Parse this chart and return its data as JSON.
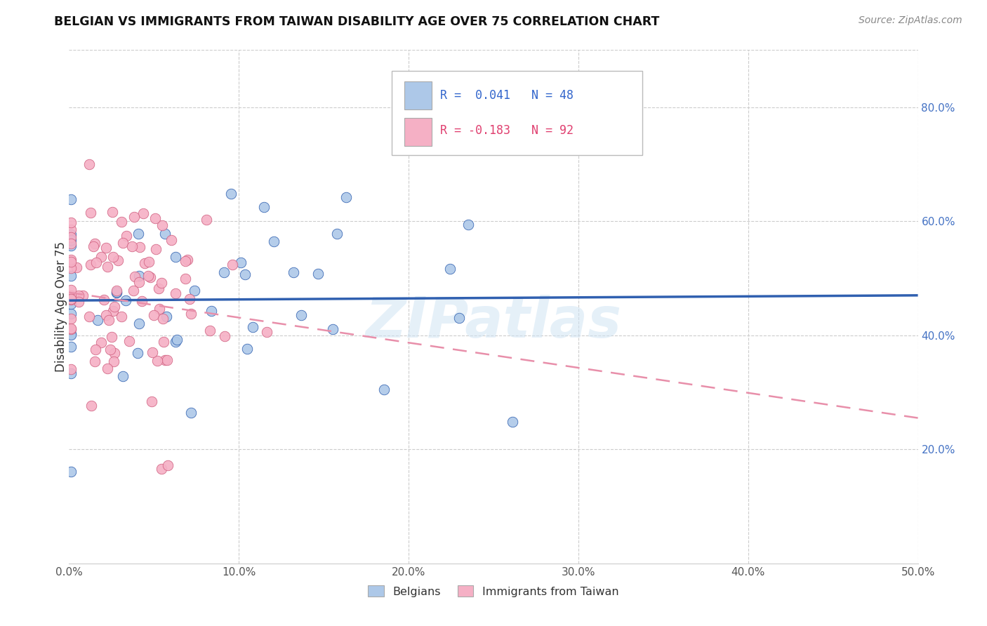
{
  "title": "BELGIAN VS IMMIGRANTS FROM TAIWAN DISABILITY AGE OVER 75 CORRELATION CHART",
  "source": "Source: ZipAtlas.com",
  "ylabel": "Disability Age Over 75",
  "watermark": "ZIPatlas",
  "xlim": [
    0.0,
    0.5
  ],
  "ylim": [
    0.0,
    0.9
  ],
  "xtick_vals": [
    0.0,
    0.1,
    0.2,
    0.3,
    0.4,
    0.5
  ],
  "xtick_labels": [
    "0.0%",
    "10.0%",
    "20.0%",
    "30.0%",
    "40.0%",
    "50.0%"
  ],
  "ytick_vals": [
    0.2,
    0.4,
    0.6,
    0.8
  ],
  "ytick_labels": [
    "20.0%",
    "40.0%",
    "60.0%",
    "80.0%"
  ],
  "color_belgian": "#adc8e8",
  "color_taiwan": "#f5b0c5",
  "color_line_belgian": "#3060b0",
  "color_line_taiwan": "#e88faa",
  "background_color": "#ffffff",
  "watermark_color": "#d0e4f4",
  "R_belgian": 0.041,
  "N_belgian": 48,
  "R_taiwan": -0.183,
  "N_taiwan": 92,
  "belgian_line_x0": 0.0,
  "belgian_line_x1": 0.5,
  "belgian_line_y0": 0.461,
  "belgian_line_y1": 0.47,
  "taiwan_line_x0": 0.0,
  "taiwan_line_x1": 0.5,
  "taiwan_line_y0": 0.475,
  "taiwan_line_y1": 0.255
}
